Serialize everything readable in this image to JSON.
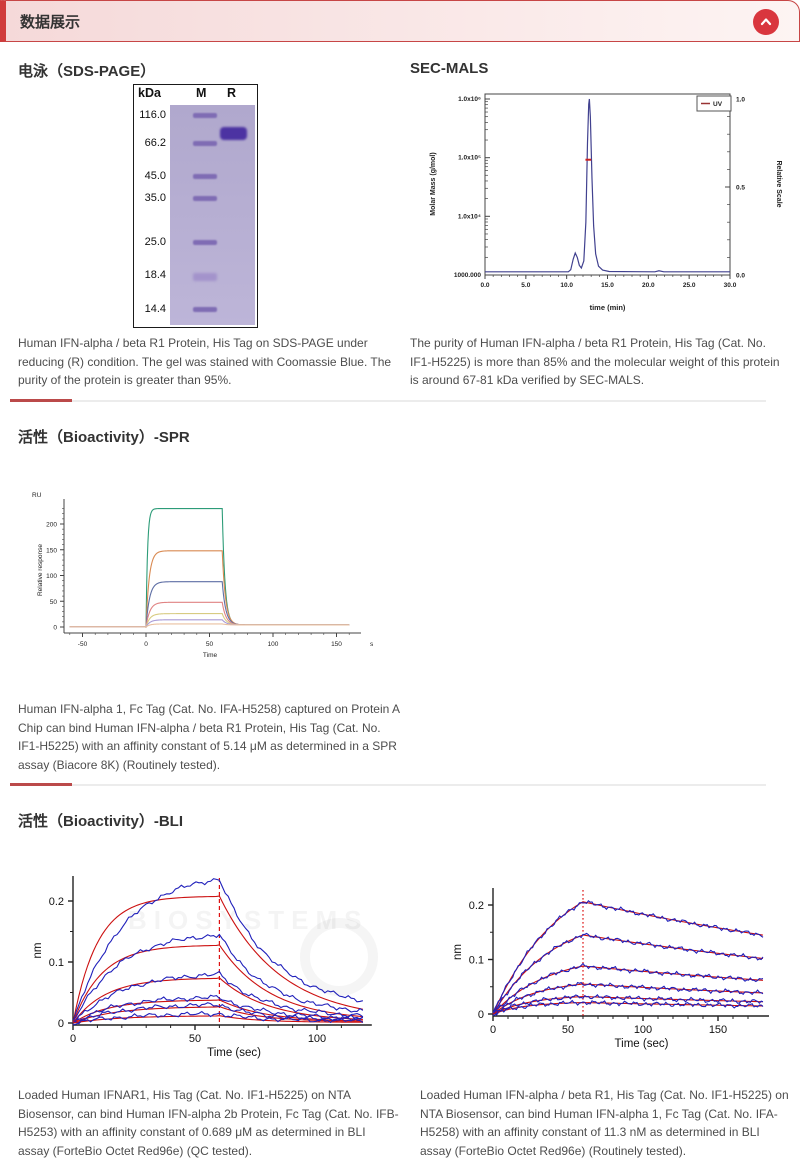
{
  "header": {
    "title": "数据展示",
    "back_to_top_icon": "chevron-up"
  },
  "sections": {
    "sds_page": {
      "heading": "电泳（SDS-PAGE）",
      "caption": "Human IFN-alpha / beta R1 Protein, His Tag on SDS-PAGE under reducing (R) condition. The gel was stained with Coomassie Blue. The purity of the protein is greater than 95%."
    },
    "sec_mals": {
      "heading": "SEC-MALS",
      "caption": "The purity of Human IFN-alpha / beta R1 Protein, His Tag (Cat. No. IF1-H5225) is more than 85% and the molecular weight of this protein is around 67-81 kDa verified by SEC-MALS."
    },
    "spr": {
      "heading": "活性（Bioactivity）-SPR",
      "caption": "Human IFN-alpha 1, Fc Tag (Cat. No. IFA-H5258) captured on Protein A Chip can bind Human IFN-alpha / beta R1 Protein, His Tag (Cat. No. IF1-H5225) with an affinity constant of 5.14 μM as determined in a SPR assay (Biacore 8K) (Routinely tested)."
    },
    "bli": {
      "heading": "活性（Bioactivity）-BLI",
      "caption_left": "Loaded Human IFNAR1, His Tag (Cat. No. IF1-H5225) on NTA Biosensor, can bind Human IFN-alpha 2b Protein, Fc Tag (Cat. No. IFB-H5253) with an affinity constant of 0.689 μM as determined in BLI assay (ForteBio Octet Red96e) (QC tested).",
      "caption_right": "Loaded Human IFN-alpha / beta R1, His Tag (Cat. No. IF1-H5225) on NTA Biosensor, can bind Human IFN-alpha 1, Fc Tag (Cat. No. IFA-H5258) with an affinity constant of 11.3 nM as determined in BLI assay (ForteBio Octet Red96e) (Routinely tested).",
      "watermark": "BIOSYSTEMS"
    }
  },
  "chart_data": [
    {
      "type": "table",
      "name": "sds-page-gel",
      "unit_header": "kDa",
      "lanes": [
        "M",
        "R"
      ],
      "ladder": [
        {
          "label": "116.0",
          "y": 10
        },
        {
          "label": "66.2",
          "y": 38
        },
        {
          "label": "45.0",
          "y": 71
        },
        {
          "label": "35.0",
          "y": 93
        },
        {
          "label": "25.0",
          "y": 137
        },
        {
          "label": "18.4",
          "y": 170
        },
        {
          "label": "14.4",
          "y": 204
        }
      ],
      "sample_band": {
        "lane": "R",
        "y": 22,
        "height": 13
      },
      "band_color": "#7f6cb4",
      "sample_band_color": "#4c33a2"
    },
    {
      "type": "line",
      "name": "sec-mals-chromatogram",
      "xlabel": "time (min)",
      "x_ticks": [
        "0.0",
        "5.0",
        "10.0",
        "15.0",
        "20.0",
        "25.0",
        "30.0"
      ],
      "x_range": [
        0,
        30
      ],
      "ylabel_left": "Molar Mass (g/mol)",
      "left_ticks": [
        "1.0x10⁶",
        "1.0x10⁵",
        "1.0x10⁴",
        "1000.000"
      ],
      "ylabel_right": "Relative Scale",
      "right_ticks": [
        "1.0",
        "0.5",
        "0.0"
      ],
      "legend": [
        {
          "label": "UV",
          "color": "#993333"
        }
      ],
      "uv_color": "#41418f",
      "uv_curve": [
        [
          0,
          0.018
        ],
        [
          10.2,
          0.018
        ],
        [
          10.5,
          0.03
        ],
        [
          10.8,
          0.09
        ],
        [
          11.05,
          0.125
        ],
        [
          11.3,
          0.1
        ],
        [
          11.55,
          0.055
        ],
        [
          11.8,
          0.04
        ],
        [
          12.1,
          0.08
        ],
        [
          12.35,
          0.3
        ],
        [
          12.55,
          0.75
        ],
        [
          12.7,
          0.97
        ],
        [
          12.78,
          1.0
        ],
        [
          12.9,
          0.9
        ],
        [
          13.1,
          0.55
        ],
        [
          13.3,
          0.28
        ],
        [
          13.55,
          0.12
        ],
        [
          13.9,
          0.05
        ],
        [
          14.4,
          0.028
        ],
        [
          15.2,
          0.02
        ],
        [
          20.8,
          0.018
        ],
        [
          21.3,
          0.024
        ],
        [
          21.9,
          0.018
        ],
        [
          30,
          0.018
        ]
      ],
      "molar_mass_marker": {
        "t_start": 12.3,
        "t_end": 13.0,
        "value": 0.655,
        "color": "#cc2222"
      }
    },
    {
      "type": "line",
      "name": "spr-sensorgram",
      "y_unit_label": "RU",
      "ylabel": "Relative response",
      "xlabel": "Time",
      "x_unit_label": "s",
      "x_ticks": [
        -50,
        0,
        50,
        100,
        150
      ],
      "y_ticks": [
        0,
        50,
        100,
        150,
        200
      ],
      "x_range": [
        -60,
        160
      ],
      "association_start": 0,
      "dissociation_start": 60,
      "end_level": 4,
      "series": [
        {
          "color": "#2d9c78",
          "plateau": 230
        },
        {
          "color": "#d98a52",
          "plateau": 148
        },
        {
          "color": "#5f6fa5",
          "plateau": 88
        },
        {
          "color": "#e08383",
          "plateau": 48
        },
        {
          "color": "#d8cc82",
          "plateau": 26
        },
        {
          "color": "#a89ad6",
          "plateau": 14
        },
        {
          "color": "#eac0a0",
          "plateau": 6
        }
      ]
    },
    {
      "type": "line",
      "name": "bli-sensorgram-left",
      "ylabel": "nm",
      "xlabel": "Time (sec)",
      "x_ticks": [
        0,
        50,
        100
      ],
      "y_ticks": [
        0,
        0.1,
        0.2
      ],
      "x_range": [
        0,
        120
      ],
      "event_time": 60,
      "event_line_style": "dashed",
      "fit_color": "#cc1111",
      "data_color": "#2020bb",
      "pairs": [
        {
          "fit_peak": 0.208,
          "data_peak": 0.236
        },
        {
          "fit_peak": 0.128,
          "data_peak": 0.144
        },
        {
          "fit_peak": 0.074,
          "data_peak": 0.08
        },
        {
          "fit_peak": 0.038,
          "data_peak": 0.042
        },
        {
          "fit_peak": 0.027,
          "data_peak": 0.03
        },
        {
          "fit_peak": 0.012,
          "data_peak": 0.015
        }
      ]
    },
    {
      "type": "line",
      "name": "bli-sensorgram-right",
      "ylabel": "nm",
      "xlabel": "Time (sec)",
      "x_ticks": [
        0,
        50,
        100,
        150
      ],
      "y_ticks": [
        0,
        0.1,
        0.2
      ],
      "x_range": [
        0,
        180
      ],
      "event_time": 60,
      "event_line_style": "dotted",
      "fit_color": "#cc1111",
      "data_color": "#2020bb",
      "pairs": [
        {
          "fit_peak": 0.206,
          "data_peak": 0.206
        },
        {
          "fit_peak": 0.145,
          "data_peak": 0.145
        },
        {
          "fit_peak": 0.088,
          "data_peak": 0.088
        },
        {
          "fit_peak": 0.055,
          "data_peak": 0.055
        },
        {
          "fit_peak": 0.032,
          "data_peak": 0.032
        },
        {
          "fit_peak": 0.021,
          "data_peak": 0.021
        }
      ]
    }
  ]
}
